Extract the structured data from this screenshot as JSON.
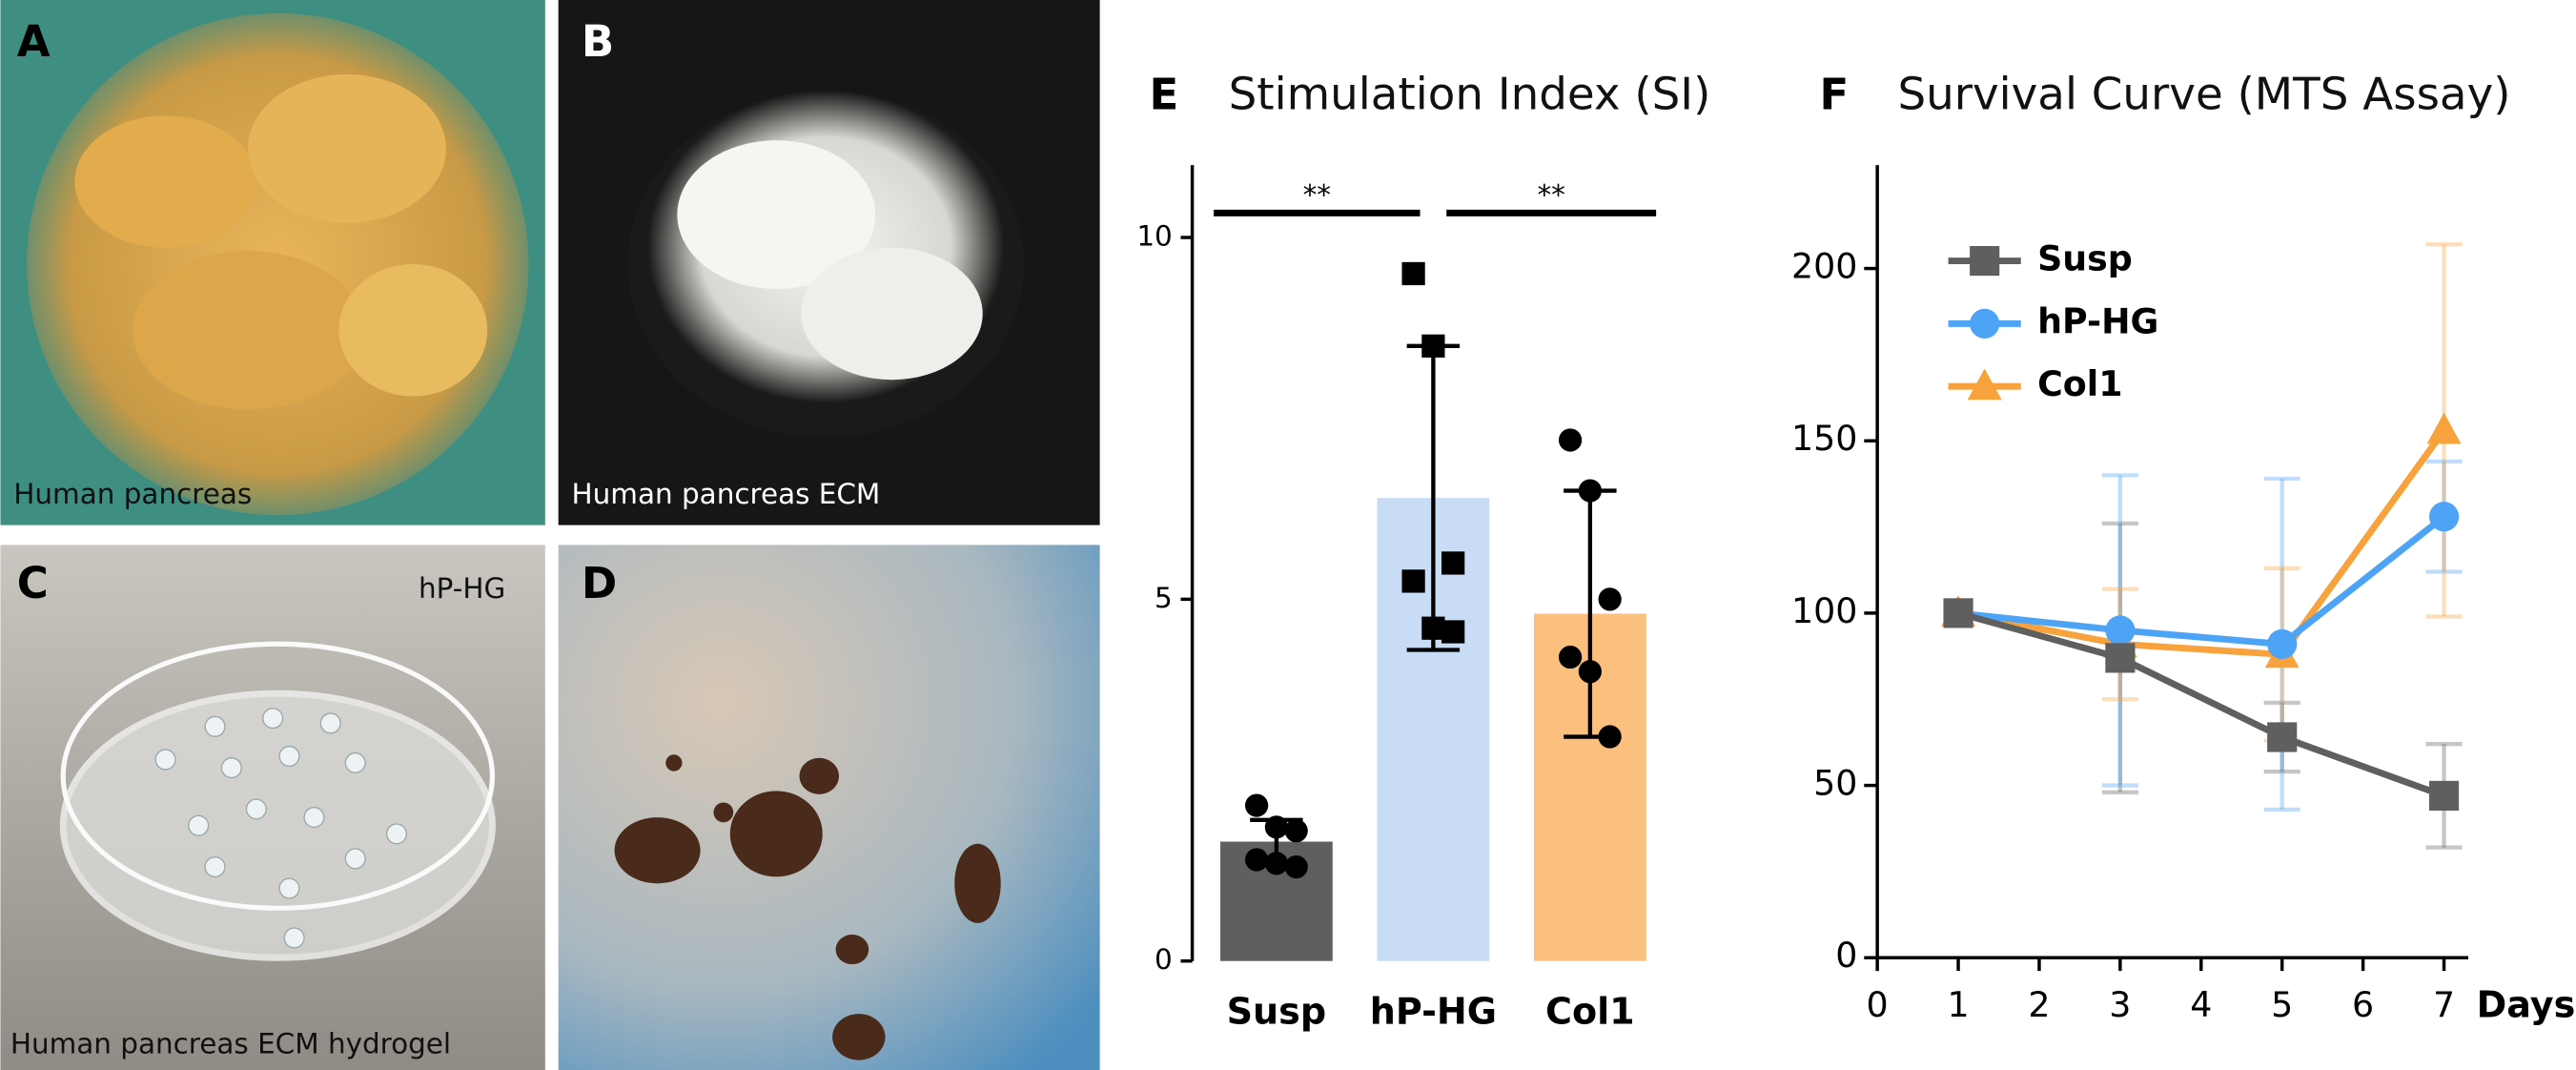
{
  "panels": [
    {
      "letter": "A",
      "caption": "Human pancreas"
    },
    {
      "letter": "B",
      "caption": "Human pancreas ECM"
    },
    {
      "letter": "C",
      "caption": "Human pancreas ECM hydrogel",
      "tag": "hP-HG"
    },
    {
      "letter": "D"
    }
  ],
  "chart_data": [
    {
      "type": "bar",
      "panel": "E",
      "title": "Stimulation Index (SI)",
      "categories": [
        "Susp",
        "hP-HG",
        "Col1"
      ],
      "values": [
        1.65,
        6.4,
        4.8
      ],
      "errors": [
        0.3,
        2.1,
        1.7
      ],
      "colors": [
        "#5f5f5f",
        "#c9dcf5",
        "#fcc07e"
      ],
      "markers": [
        "circle",
        "square",
        "circle"
      ],
      "points": [
        [
          2.15,
          1.85,
          1.8,
          1.4,
          1.35,
          1.3
        ],
        [
          9.5,
          8.5,
          5.5,
          5.25,
          4.6,
          4.55
        ],
        [
          7.2,
          6.5,
          5.0,
          4.2,
          4.0,
          3.1
        ]
      ],
      "annotations": [
        "**",
        "**"
      ],
      "ylim": [
        0,
        11
      ],
      "yticks": [
        0,
        5,
        10
      ]
    },
    {
      "type": "line",
      "panel": "F",
      "title": "Survival Curve (MTS Assay)",
      "x": [
        1,
        3,
        5,
        7
      ],
      "xlabel": "Days",
      "series": [
        {
          "name": "Susp",
          "color": "#5f5f5f",
          "marker": "square",
          "values": [
            100,
            87,
            64,
            47
          ],
          "errors": [
            0,
            39,
            10,
            15
          ]
        },
        {
          "name": "hP-HG",
          "color": "#4da3f5",
          "marker": "circle",
          "values": [
            100,
            95,
            91,
            128
          ],
          "errors": [
            0,
            45,
            48,
            16
          ]
        },
        {
          "name": "Col1",
          "color": "#f7a23c",
          "marker": "triangle",
          "values": [
            100,
            91,
            88,
            153
          ],
          "errors": [
            0,
            16,
            25,
            54
          ]
        }
      ],
      "xlim": [
        0,
        7.3
      ],
      "xticks": [
        0,
        1,
        2,
        3,
        4,
        5,
        6,
        7
      ],
      "ylim": [
        0,
        230
      ],
      "yticks": [
        0,
        50,
        100,
        150,
        200
      ]
    }
  ]
}
